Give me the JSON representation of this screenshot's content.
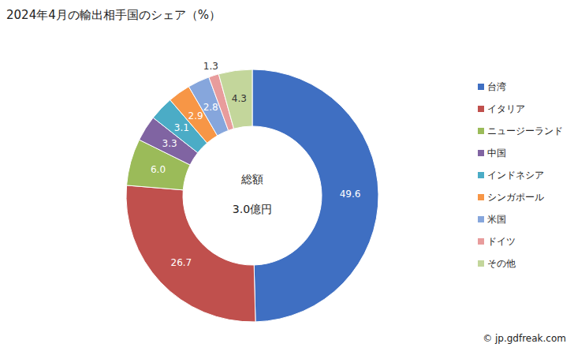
{
  "chart_data": {
    "type": "pie",
    "title": "2024年4月の輸出相手国のシェア（%）",
    "categories": [
      "台湾",
      "イタリア",
      "ニュージーランド",
      "中国",
      "インドネシア",
      "シンガポール",
      "米国",
      "ドイツ",
      "その他"
    ],
    "values": [
      49.6,
      26.7,
      6.0,
      3.3,
      3.1,
      2.9,
      2.8,
      1.3,
      4.3
    ],
    "value_labels": [
      "49.6",
      "26.7",
      "6.0",
      "3.3",
      "3.1",
      "2.9",
      "2.8",
      "1.3",
      "4.3"
    ],
    "colors": [
      "#3f6fc2",
      "#c0504d",
      "#9bbb59",
      "#8064a2",
      "#4bacc6",
      "#f79646",
      "#86a6dc",
      "#e89c9c",
      "#c3d69b"
    ],
    "data_labels": true,
    "legend": "right",
    "center_text": [
      "総額",
      "3.0億円"
    ],
    "source": "© jp.gdfreak.com"
  }
}
